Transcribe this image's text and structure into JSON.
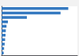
{
  "chart_data": {
    "type": "bar",
    "orientation": "horizontal",
    "categories": [
      null,
      null,
      null,
      null,
      null,
      null,
      null,
      null,
      null,
      null,
      null
    ],
    "values": [
      47.5,
      42.0,
      18.0,
      4.5,
      3.5,
      3.0,
      2.8,
      2.5,
      2.2,
      1.8,
      1.5
    ],
    "color": "#3579c0",
    "xlim": [
      0,
      54
    ],
    "grid": false,
    "tick_labels": false
  }
}
